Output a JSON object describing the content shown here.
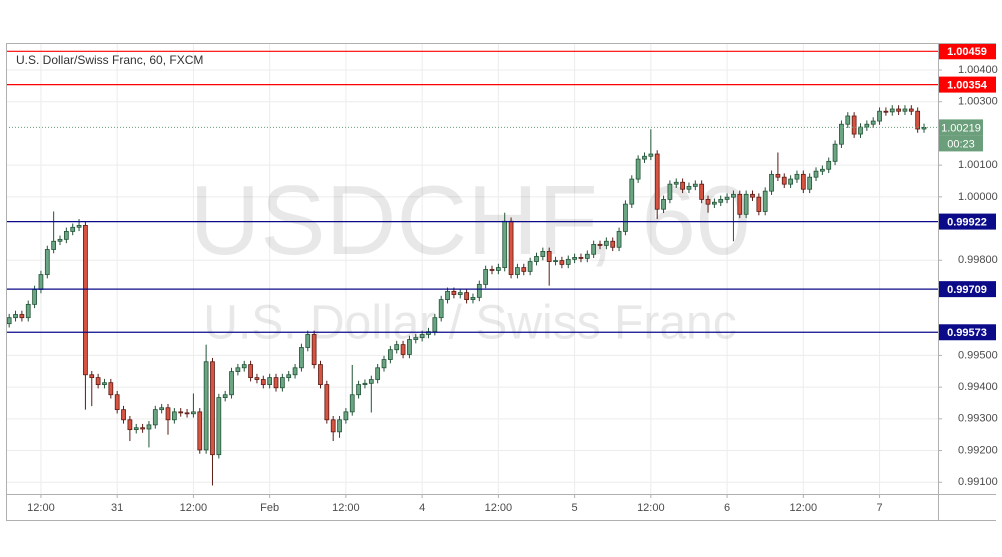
{
  "chart_data": {
    "type": "candlestick",
    "title": "U.S. Dollar/Swiss Franc, 60, FXCM",
    "watermark": "USDCHF, 60",
    "watermark_subtitle": "U.S. Dollar / Swiss Franc",
    "up_color": "#6ba583",
    "down_color": "#d75442",
    "grid": true,
    "ylim": [
      0.99063,
      1.00482
    ],
    "xlim": [
      -0.5,
      146.2
    ],
    "yticks": [
      {
        "value": 1.004,
        "label": "1.00400"
      },
      {
        "value": 1.003,
        "label": "1.00300"
      },
      {
        "value": 1.001,
        "label": "1.00100"
      },
      {
        "value": 1.0,
        "label": "1.00000"
      },
      {
        "value": 0.998,
        "label": "0.99800"
      },
      {
        "value": 0.995,
        "label": "0.99500"
      },
      {
        "value": 0.994,
        "label": "0.99400"
      },
      {
        "value": 0.993,
        "label": "0.99300"
      },
      {
        "value": 0.992,
        "label": "0.99200"
      },
      {
        "value": 0.991,
        "label": "0.99100"
      }
    ],
    "xticks": [
      {
        "value": 5,
        "label": "12:00"
      },
      {
        "value": 17,
        "label": "31"
      },
      {
        "value": 29,
        "label": "12:00"
      },
      {
        "value": 41,
        "label": "Feb"
      },
      {
        "value": 53,
        "label": "12:00"
      },
      {
        "value": 65,
        "label": "4"
      },
      {
        "value": 77,
        "label": "12:00"
      },
      {
        "value": 89,
        "label": "5"
      },
      {
        "value": 101,
        "label": "12:00"
      },
      {
        "value": 113,
        "label": "6"
      },
      {
        "value": 125,
        "label": "12:00"
      },
      {
        "value": 137,
        "label": "7"
      }
    ],
    "levels": [
      {
        "value": 1.00459,
        "color": "#ff0000"
      },
      {
        "value": 1.00354,
        "color": "#ff0000"
      },
      {
        "value": 0.99922,
        "color": "#0b0b8a"
      },
      {
        "value": 0.99709,
        "color": "#0b0b8a"
      },
      {
        "value": 0.99573,
        "color": "#0b0b8a"
      }
    ],
    "last_price": {
      "value": 1.00219,
      "countdown": "00:23",
      "color": "#6b9e7a"
    },
    "ohlc": [
      [
        0.996,
        0.99631,
        0.99588,
        0.99619
      ],
      [
        0.99619,
        0.99641,
        0.99607,
        0.99629
      ],
      [
        0.99629,
        0.99641,
        0.99607,
        0.99619
      ],
      [
        0.99619,
        0.99673,
        0.99607,
        0.99661
      ],
      [
        0.99661,
        0.9972,
        0.99649,
        0.99708
      ],
      [
        0.99708,
        0.99767,
        0.99696,
        0.99755
      ],
      [
        0.99755,
        0.99846,
        0.99743,
        0.99834
      ],
      [
        0.99834,
        0.99954,
        0.99822,
        0.9986
      ],
      [
        0.9986,
        0.99878,
        0.99848,
        0.99866
      ],
      [
        0.99866,
        0.99903,
        0.99854,
        0.99891
      ],
      [
        0.99891,
        0.99916,
        0.99879,
        0.99904
      ],
      [
        0.99904,
        0.9993,
        0.99892,
        0.9991
      ],
      [
        0.9991,
        0.99922,
        0.99329,
        0.99439
      ],
      [
        0.99439,
        0.99451,
        0.9934,
        0.9943
      ],
      [
        0.9943,
        0.99442,
        0.99396,
        0.99408
      ],
      [
        0.99408,
        0.99426,
        0.99396,
        0.99414
      ],
      [
        0.99414,
        0.99426,
        0.99364,
        0.99376
      ],
      [
        0.99376,
        0.99388,
        0.99317,
        0.99329
      ],
      [
        0.99329,
        0.99341,
        0.99285,
        0.99297
      ],
      [
        0.99297,
        0.99309,
        0.9923,
        0.99266
      ],
      [
        0.99266,
        0.99284,
        0.99254,
        0.99272
      ],
      [
        0.99272,
        0.99284,
        0.99256,
        0.99268
      ],
      [
        0.99268,
        0.99293,
        0.9921,
        0.99281
      ],
      [
        0.99281,
        0.99341,
        0.99269,
        0.99329
      ],
      [
        0.99329,
        0.99347,
        0.99317,
        0.99335
      ],
      [
        0.99335,
        0.99347,
        0.9925,
        0.99297
      ],
      [
        0.99297,
        0.99334,
        0.99285,
        0.99322
      ],
      [
        0.99322,
        0.99334,
        0.99307,
        0.99319
      ],
      [
        0.99319,
        0.99331,
        0.99304,
        0.99316
      ],
      [
        0.99316,
        0.9938,
        0.99304,
        0.99322
      ],
      [
        0.99322,
        0.99334,
        0.9919,
        0.99202
      ],
      [
        0.99202,
        0.99534,
        0.9919,
        0.9948
      ],
      [
        0.9948,
        0.99492,
        0.9909,
        0.99187
      ],
      [
        0.99187,
        0.99379,
        0.99175,
        0.99367
      ],
      [
        0.99367,
        0.99388,
        0.99355,
        0.99376
      ],
      [
        0.99376,
        0.99461,
        0.99364,
        0.99449
      ],
      [
        0.99449,
        0.99473,
        0.99437,
        0.99461
      ],
      [
        0.99461,
        0.99483,
        0.99449,
        0.99471
      ],
      [
        0.99471,
        0.99483,
        0.99418,
        0.9943
      ],
      [
        0.9943,
        0.99442,
        0.99412,
        0.99424
      ],
      [
        0.99424,
        0.99436,
        0.99396,
        0.99408
      ],
      [
        0.99408,
        0.99442,
        0.99396,
        0.9943
      ],
      [
        0.9943,
        0.99442,
        0.99386,
        0.99398
      ],
      [
        0.99398,
        0.99442,
        0.99386,
        0.9943
      ],
      [
        0.9943,
        0.99451,
        0.99418,
        0.99439
      ],
      [
        0.99439,
        0.99473,
        0.99427,
        0.99461
      ],
      [
        0.99461,
        0.99537,
        0.99449,
        0.99525
      ],
      [
        0.99525,
        0.99578,
        0.99513,
        0.99566
      ],
      [
        0.99566,
        0.99578,
        0.99459,
        0.99471
      ],
      [
        0.99471,
        0.99483,
        0.99396,
        0.99408
      ],
      [
        0.99408,
        0.9942,
        0.99285,
        0.99297
      ],
      [
        0.99297,
        0.99309,
        0.9923,
        0.99259
      ],
      [
        0.99259,
        0.99309,
        0.9924,
        0.99297
      ],
      [
        0.99297,
        0.99334,
        0.99285,
        0.99322
      ],
      [
        0.99322,
        0.9947,
        0.9931,
        0.99376
      ],
      [
        0.99376,
        0.9942,
        0.99364,
        0.99408
      ],
      [
        0.99408,
        0.99424,
        0.99396,
        0.99412
      ],
      [
        0.99412,
        0.99436,
        0.9932,
        0.99424
      ],
      [
        0.99424,
        0.99473,
        0.99412,
        0.99461
      ],
      [
        0.99461,
        0.99499,
        0.99449,
        0.99487
      ],
      [
        0.99487,
        0.9953,
        0.99475,
        0.99518
      ],
      [
        0.99518,
        0.99546,
        0.99506,
        0.99534
      ],
      [
        0.99534,
        0.99546,
        0.99491,
        0.99503
      ],
      [
        0.99503,
        0.99562,
        0.99491,
        0.9955
      ],
      [
        0.9955,
        0.99568,
        0.99538,
        0.99556
      ],
      [
        0.99556,
        0.99578,
        0.99544,
        0.99566
      ],
      [
        0.99566,
        0.99587,
        0.99554,
        0.99575
      ],
      [
        0.99575,
        0.99631,
        0.99563,
        0.99619
      ],
      [
        0.99619,
        0.99688,
        0.99607,
        0.99676
      ],
      [
        0.99676,
        0.99714,
        0.99664,
        0.99702
      ],
      [
        0.99702,
        0.99714,
        0.9968,
        0.99692
      ],
      [
        0.99692,
        0.9971,
        0.9968,
        0.99698
      ],
      [
        0.99698,
        0.9971,
        0.99664,
        0.99676
      ],
      [
        0.99676,
        0.99695,
        0.99664,
        0.99683
      ],
      [
        0.99683,
        0.99736,
        0.99671,
        0.99724
      ],
      [
        0.99724,
        0.99783,
        0.99712,
        0.99771
      ],
      [
        0.99771,
        0.99783,
        0.99756,
        0.99768
      ],
      [
        0.99768,
        0.99789,
        0.99756,
        0.99777
      ],
      [
        0.99777,
        0.9995,
        0.99765,
        0.99923
      ],
      [
        0.99923,
        0.99935,
        0.99743,
        0.99755
      ],
      [
        0.99755,
        0.99789,
        0.99743,
        0.99777
      ],
      [
        0.99777,
        0.99789,
        0.99753,
        0.99765
      ],
      [
        0.99765,
        0.99808,
        0.99753,
        0.99796
      ],
      [
        0.99796,
        0.99824,
        0.99784,
        0.99812
      ],
      [
        0.99812,
        0.9984,
        0.998,
        0.99828
      ],
      [
        0.99828,
        0.9984,
        0.9972,
        0.99796
      ],
      [
        0.99796,
        0.99811,
        0.99784,
        0.99799
      ],
      [
        0.99799,
        0.99811,
        0.99775,
        0.99787
      ],
      [
        0.99787,
        0.99815,
        0.99775,
        0.99803
      ],
      [
        0.99803,
        0.99821,
        0.99791,
        0.99809
      ],
      [
        0.99809,
        0.99821,
        0.99794,
        0.99806
      ],
      [
        0.99806,
        0.99831,
        0.99794,
        0.99819
      ],
      [
        0.99819,
        0.99862,
        0.99807,
        0.9985
      ],
      [
        0.9985,
        0.99862,
        0.99835,
        0.99847
      ],
      [
        0.99847,
        0.99872,
        0.99835,
        0.9986
      ],
      [
        0.9986,
        0.99872,
        0.99829,
        0.99841
      ],
      [
        0.99841,
        0.99903,
        0.99829,
        0.99891
      ],
      [
        0.99891,
        0.99989,
        0.99879,
        0.99977
      ],
      [
        0.99977,
        1.00068,
        0.99965,
        1.00056
      ],
      [
        1.00056,
        1.00131,
        1.00044,
        1.00119
      ],
      [
        1.00119,
        1.0014,
        1.00107,
        1.00128
      ],
      [
        1.00128,
        1.00213,
        1.00116,
        1.00135
      ],
      [
        1.00135,
        1.00147,
        0.9993,
        0.99961
      ],
      [
        0.99961,
        1.00004,
        0.99949,
        0.99992
      ],
      [
        0.99992,
        1.00052,
        0.9998,
        1.0004
      ],
      [
        1.0004,
        1.00058,
        1.00028,
        1.00046
      ],
      [
        1.00046,
        1.00058,
        1.00012,
        1.00024
      ],
      [
        1.00024,
        1.00045,
        1.00012,
        1.00033
      ],
      [
        1.00033,
        1.00052,
        1.00021,
        1.0004
      ],
      [
        1.0004,
        1.00052,
        0.9998,
        0.99992
      ],
      [
        0.99992,
        1.00004,
        0.9995,
        0.99977
      ],
      [
        0.99977,
        0.99995,
        0.99965,
        0.99983
      ],
      [
        0.99983,
        1.00004,
        0.99971,
        0.99992
      ],
      [
        0.99992,
        1.00011,
        0.9998,
        0.99999
      ],
      [
        0.99999,
        1.0002,
        0.9986,
        1.00008
      ],
      [
        1.00008,
        1.0002,
        0.99933,
        0.99945
      ],
      [
        0.99945,
        1.0002,
        0.99933,
        1.00008
      ],
      [
        1.00008,
        1.0002,
        0.99987,
        0.99999
      ],
      [
        0.99999,
        1.00011,
        0.99942,
        0.99954
      ],
      [
        0.99954,
        1.0003,
        0.99942,
        1.00018
      ],
      [
        1.00018,
        1.00083,
        1.00006,
        1.00071
      ],
      [
        1.00071,
        1.0014,
        1.0005,
        1.00062
      ],
      [
        1.00062,
        1.00074,
        1.00028,
        1.0004
      ],
      [
        1.0004,
        1.00068,
        1.00028,
        1.00056
      ],
      [
        1.00056,
        1.00083,
        1.00044,
        1.00071
      ],
      [
        1.00071,
        1.00083,
        1.00012,
        1.00024
      ],
      [
        1.00024,
        1.00074,
        1.00012,
        1.00062
      ],
      [
        1.00062,
        1.00093,
        1.0005,
        1.00081
      ],
      [
        1.00081,
        1.00099,
        1.00069,
        1.00087
      ],
      [
        1.00087,
        1.00124,
        1.00075,
        1.00112
      ],
      [
        1.00112,
        1.00178,
        1.001,
        1.00166
      ],
      [
        1.00166,
        1.00241,
        1.00154,
        1.00229
      ],
      [
        1.00229,
        1.00267,
        1.00217,
        1.00255
      ],
      [
        1.00255,
        1.00267,
        1.00186,
        1.00198
      ],
      [
        1.00198,
        1.00232,
        1.00186,
        1.0022
      ],
      [
        1.0022,
        1.00241,
        1.00208,
        1.00229
      ],
      [
        1.00229,
        1.00251,
        1.00217,
        1.00239
      ],
      [
        1.00239,
        1.00282,
        1.00227,
        1.0027
      ],
      [
        1.0027,
        1.00282,
        1.00256,
        1.00268
      ],
      [
        1.00268,
        1.00289,
        1.00256,
        1.00277
      ],
      [
        1.00277,
        1.00289,
        1.00258,
        1.0027
      ],
      [
        1.0027,
        1.00289,
        1.00258,
        1.00277
      ],
      [
        1.00277,
        1.00289,
        1.00258,
        1.0027
      ],
      [
        1.0027,
        1.00282,
        1.00202,
        1.00214
      ],
      [
        1.00214,
        1.00231,
        1.00202,
        1.00219
      ]
    ]
  }
}
